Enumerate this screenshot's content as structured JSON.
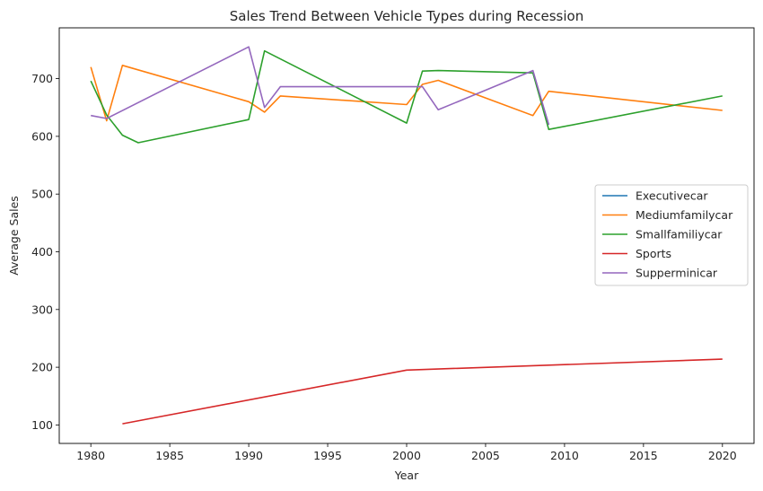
{
  "chart_data": {
    "type": "line",
    "title": "Sales Trend Between Vehicle Types during Recession",
    "xlabel": "Year",
    "ylabel": "Average Sales",
    "xlim": [
      1978,
      2022
    ],
    "ylim": [
      68,
      788
    ],
    "xticks": [
      1980,
      1985,
      1990,
      1995,
      2000,
      2005,
      2010,
      2015,
      2020
    ],
    "yticks": [
      100,
      200,
      300,
      400,
      500,
      600,
      700
    ],
    "grid": false,
    "legend_position": "center-right",
    "series": [
      {
        "name": "Executivecar",
        "color": "#1f77b4",
        "points": [
          [
            2008,
            710
          ],
          [
            2009,
            620
          ]
        ]
      },
      {
        "name": "Mediumfamilycar",
        "color": "#ff7f0e",
        "points": [
          [
            1980,
            720
          ],
          [
            1981,
            627
          ],
          [
            1982,
            723
          ],
          [
            1990,
            660
          ],
          [
            1991,
            642
          ],
          [
            1992,
            670
          ],
          [
            2000,
            655
          ],
          [
            2001,
            690
          ],
          [
            2002,
            697
          ],
          [
            2008,
            636
          ],
          [
            2009,
            678
          ],
          [
            2020,
            645
          ]
        ]
      },
      {
        "name": "Smallfamiliycar",
        "color": "#2ca02c",
        "points": [
          [
            1980,
            696
          ],
          [
            1981,
            637
          ],
          [
            1982,
            602
          ],
          [
            1983,
            589
          ],
          [
            1990,
            629
          ],
          [
            1991,
            748
          ],
          [
            2000,
            623
          ],
          [
            2001,
            713
          ],
          [
            2002,
            714
          ],
          [
            2008,
            710
          ],
          [
            2009,
            612
          ],
          [
            2020,
            670
          ]
        ]
      },
      {
        "name": "Sports",
        "color": "#d62728",
        "points": [
          [
            1982,
            102
          ],
          [
            2000,
            195
          ],
          [
            2020,
            214
          ]
        ]
      },
      {
        "name": "Supperminicar",
        "color": "#9467bd",
        "points": [
          [
            1980,
            636
          ],
          [
            1981,
            631
          ],
          [
            1990,
            755
          ],
          [
            1991,
            650
          ],
          [
            1992,
            686
          ],
          [
            2000,
            686
          ],
          [
            2001,
            686
          ],
          [
            2002,
            646
          ],
          [
            2008,
            714
          ],
          [
            2009,
            620
          ]
        ]
      }
    ]
  }
}
